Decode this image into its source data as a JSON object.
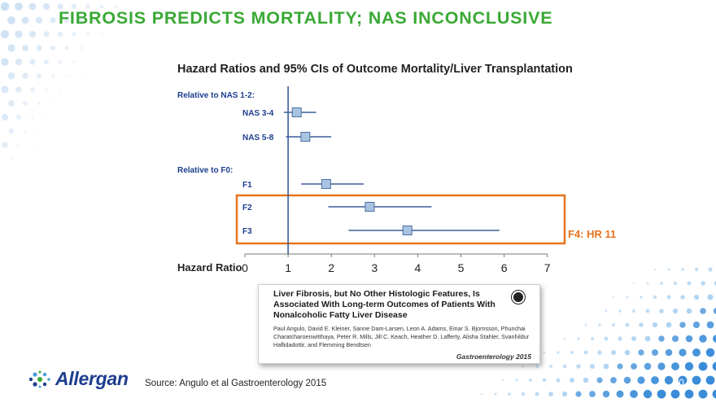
{
  "slide": {
    "title": "FIBROSIS PREDICTS MORTALITY; NAS INCONCLUSIVE",
    "source": "Source: Angulo et al Gastroenterology 2015",
    "page_number": "10",
    "logo_text": "Allergan"
  },
  "chart_data": {
    "type": "forest",
    "title": "Hazard Ratios and 95% CIs of Outcome Mortality/Liver Transplantation",
    "xlabel": "Hazard Ratio",
    "xlim": [
      0,
      7
    ],
    "ticks": [
      0,
      1,
      2,
      3,
      4,
      5,
      6,
      7
    ],
    "reference_line": 1,
    "groups": [
      {
        "label": "Relative to NAS 1-2:",
        "rows": [
          {
            "label": "NAS 3-4",
            "hr": 1.2,
            "lo": 0.9,
            "hi": 1.65
          },
          {
            "label": "NAS 5-8",
            "hr": 1.4,
            "lo": 0.95,
            "hi": 2.0
          }
        ]
      },
      {
        "label": "Relative to F0:",
        "rows": [
          {
            "label": "F1",
            "hr": 1.88,
            "lo": 1.3,
            "hi": 2.75
          },
          {
            "label": "F2",
            "hr": 2.89,
            "lo": 1.93,
            "hi": 4.32
          },
          {
            "label": "F3",
            "hr": 3.76,
            "lo": 2.4,
            "hi": 5.89
          }
        ]
      }
    ],
    "highlight": {
      "rows": [
        "F2",
        "F3"
      ],
      "color": "#e8731f"
    },
    "annotation": "F4: HR 11",
    "colors": {
      "marker_fill": "#a9c4e0",
      "marker_stroke": "#4a6fa5",
      "ci_line": "#3b5f9b",
      "ref_line": "#3b5f9b",
      "highlight": "#e8731f"
    }
  },
  "citation": {
    "title": "Liver Fibrosis, but No Other Histologic Features, Is Associated With Long-term Outcomes of Patients With Nonalcoholic Fatty Liver Disease",
    "authors": "Paul Angulo, David E. Kleiner, Sanne Dam-Larsen, Leon A. Adams, Einar S. Bjornsson, Phunchai Charatcharoenwitthaya, Peter R. Mills, Jill C. Keach, Heather D. Lafferty, Alisha Stahler, Svanhildur Haflidadottir, and Flemming Bendtsen",
    "journal": "Gastroenterology 2015"
  }
}
